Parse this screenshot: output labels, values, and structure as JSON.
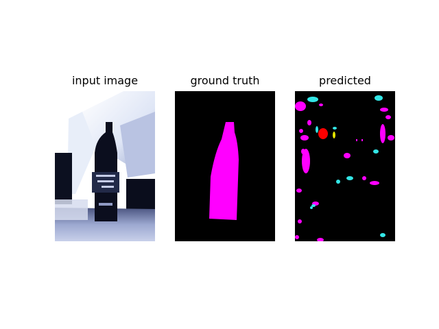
{
  "panels": [
    {
      "title": "input image"
    },
    {
      "title": "ground truth"
    },
    {
      "title": "predicted"
    }
  ],
  "colors": {
    "background": "#000000",
    "bottle_class": "#ff00ff",
    "secondary_class": "#33e6e6",
    "red_class": "#ff0000",
    "yellow_class": "#e6e600",
    "input_tint": "#e6ecf8"
  }
}
